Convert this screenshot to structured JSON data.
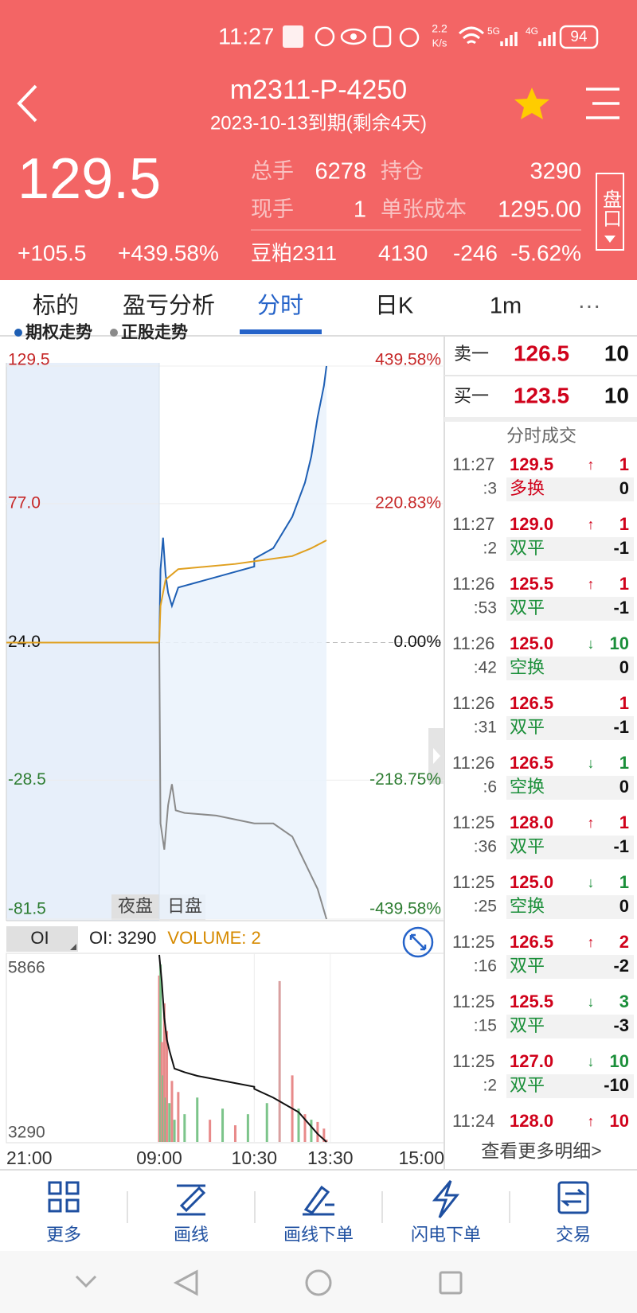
{
  "status_bar": {
    "time": "11:27",
    "speed": "2.2",
    "speed_unit": "K/s",
    "net1": "5G",
    "net2": "4G",
    "battery": "94"
  },
  "header": {
    "title": "m2311-P-4250",
    "subtitle": "2023-10-13到期(剩余4天)",
    "price": "129.5",
    "change": "+105.5",
    "change_pct": "+439.58%",
    "stats": [
      {
        "label": "总手",
        "value": "6278"
      },
      {
        "label": "持仓",
        "value": "3290"
      },
      {
        "label": "现手",
        "value": "1"
      },
      {
        "label": "单张成本",
        "value": "1295.00"
      }
    ],
    "underlying": {
      "name": "豆粕2311",
      "price": "4130",
      "change": "-246",
      "change_pct": "-5.62%"
    },
    "panel_button": "盘口"
  },
  "tabs": [
    "标的",
    "盈亏分析",
    "分时",
    "日K",
    "1m",
    "···"
  ],
  "chart_data": [
    {
      "type": "line",
      "ylim": [
        -81.5,
        129.5
      ],
      "yticks": [
        129.5,
        {
          "value": 77,
          "label": "77.0"
        },
        {
          "value": 24,
          "label": "24.0"
        },
        -28.5,
        -81.5
      ],
      "y2lim": [
        -439.58,
        439.58
      ],
      "y2ticks": [
        {
          "value": 439.58,
          "label": "439.58%"
        },
        {
          "value": 220.83,
          "label": "220.83%"
        },
        {
          "value": 0,
          "label": "0.00%"
        },
        {
          "value": -218.75,
          "label": "-218.75%"
        },
        {
          "value": -439.58,
          "label": "-439.58%"
        }
      ],
      "annotations": [
        "夜盘",
        "日盘"
      ],
      "series": [
        {
          "name": "期权走势",
          "color": "#1e5fb4",
          "x": [
            "21:00",
            "23:00",
            "09:00",
            "09:01",
            "09:03",
            "09:05",
            "09:07",
            "09:10",
            "09:15",
            "09:30",
            "09:45",
            "10:00",
            "10:15",
            "10:30",
            "10:45",
            "11:00",
            "11:10",
            "11:15",
            "11:20",
            "11:25",
            "11:27"
          ],
          "values": [
            24,
            24,
            24,
            52,
            64,
            50,
            43,
            38,
            45,
            47,
            49,
            51,
            53,
            56,
            60,
            72,
            85,
            95,
            110,
            122,
            129.5
          ]
        },
        {
          "color": "#e0a020",
          "x": [
            "21:00",
            "23:00",
            "09:00",
            "09:01",
            "09:05",
            "09:15",
            "10:00",
            "10:30",
            "11:00",
            "11:15",
            "11:27"
          ],
          "values": [
            24,
            24,
            24,
            38,
            48,
            52,
            54,
            55,
            57,
            60,
            63
          ]
        },
        {
          "name": "正股走势",
          "color": "#8a8a8a",
          "x": [
            "09:00",
            "09:01",
            "09:04",
            "09:07",
            "09:10",
            "09:13",
            "09:20",
            "09:45",
            "10:15",
            "10:45",
            "11:00",
            "11:10",
            "11:20",
            "11:27"
          ],
          "values": [
            24,
            -45,
            -55,
            -38,
            -30,
            -40,
            -41,
            -42,
            -45,
            -45,
            -50,
            -60,
            -70,
            -81.5
          ]
        }
      ]
    },
    {
      "type": "combo",
      "ylim": [
        3290,
        5866
      ],
      "yticks": [
        5866,
        3290
      ],
      "xticks": [
        "21:00",
        "09:00",
        "10:30",
        "13:30",
        "15:00"
      ],
      "labels": [
        {
          "text": "OI: 3290",
          "color": "#222222"
        },
        {
          "text": "VOLUME: 2",
          "color": "#d68a00"
        }
      ],
      "series": [
        {
          "name": "OI",
          "type": "line",
          "color": "#111111",
          "x": [
            "09:00",
            "09:02",
            "09:04",
            "09:06",
            "09:08",
            "09:12",
            "09:20",
            "09:30",
            "09:45",
            "10:00",
            "10:15",
            "10:30",
            "10:45",
            "10:55",
            "11:05",
            "11:15",
            "11:20",
            "11:27"
          ],
          "values": [
            5866,
            5500,
            5000,
            4700,
            4550,
            4300,
            4250,
            4200,
            4150,
            4100,
            4050,
            4020,
            3900,
            3800,
            3700,
            3500,
            3400,
            3290
          ]
        },
        {
          "type": "bar",
          "x": [
            "09:00",
            "09:01",
            "09:02",
            "09:03",
            "09:04",
            "09:05",
            "09:06",
            "09:08",
            "09:10",
            "09:12",
            "09:15",
            "09:20",
            "09:30",
            "09:40",
            "09:50",
            "10:00",
            "10:10",
            "10:40",
            "10:50",
            "11:00",
            "11:05",
            "11:10",
            "11:15",
            "11:20",
            "11:25",
            "11:27"
          ],
          "values": [
            150,
            160,
            90,
            60,
            125,
            40,
            100,
            35,
            55,
            20,
            45,
            25,
            40,
            20,
            30,
            15,
            25,
            35,
            145,
            60,
            30,
            25,
            20,
            18,
            12,
            2
          ],
          "colors": [
            "#e88a8a",
            "#7cc48a",
            "#e88a8a",
            "#7cc48a",
            "#e88a8a",
            "#7cc48a",
            "#e88a8a",
            "#7cc48a",
            "#e88a8a",
            "#7cc48a",
            "#e88a8a",
            "#7cc48a",
            "#7cc48a",
            "#e88a8a",
            "#7cc48a",
            "#e88a8a",
            "#7cc48a",
            "#7cc48a",
            "#d9a0a0",
            "#e88a8a",
            "#7cc48a",
            "#e88a8a",
            "#7cc48a",
            "#e88a8a",
            "#e88a8a",
            "#e88a8a"
          ]
        }
      ]
    }
  ],
  "order_book": {
    "ask_label": "卖一",
    "ask_price": "126.5",
    "ask_vol": "10",
    "bid_label": "买一",
    "bid_price": "123.5",
    "bid_vol": "10"
  },
  "trades": {
    "title": "分时成交",
    "rows": [
      {
        "time": "11:27",
        "sec": ":3",
        "price": "129.5",
        "arrow": "↑",
        "vol": "1",
        "type": "多换",
        "chg": "0",
        "color": "#d0021b",
        "type_color": "#d0021b"
      },
      {
        "time": "11:27",
        "sec": ":2",
        "price": "129.0",
        "arrow": "↑",
        "vol": "1",
        "type": "双平",
        "chg": "-1",
        "color": "#d0021b",
        "type_color": "#1b8f3a"
      },
      {
        "time": "11:26",
        "sec": ":53",
        "price": "125.5",
        "arrow": "↑",
        "vol": "1",
        "type": "双平",
        "chg": "-1",
        "color": "#d0021b",
        "type_color": "#1b8f3a"
      },
      {
        "time": "11:26",
        "sec": ":42",
        "price": "125.0",
        "arrow": "↓",
        "vol": "10",
        "type": "空换",
        "chg": "0",
        "color": "#1b8f3a",
        "type_color": "#1b8f3a"
      },
      {
        "time": "11:26",
        "sec": ":31",
        "price": "126.5",
        "vol": "1",
        "type": "双平",
        "chg": "-1",
        "color": "#d0021b",
        "type_color": "#1b8f3a"
      },
      {
        "time": "11:26",
        "sec": ":6",
        "price": "126.5",
        "arrow": "↓",
        "vol": "1",
        "type": "空换",
        "chg": "0",
        "color": "#1b8f3a",
        "type_color": "#1b8f3a"
      },
      {
        "time": "11:25",
        "sec": ":36",
        "price": "128.0",
        "arrow": "↑",
        "vol": "1",
        "type": "双平",
        "chg": "-1",
        "color": "#d0021b",
        "type_color": "#1b8f3a"
      },
      {
        "time": "11:25",
        "sec": ":25",
        "price": "125.0",
        "arrow": "↓",
        "vol": "1",
        "type": "空换",
        "chg": "0",
        "color": "#1b8f3a",
        "type_color": "#1b8f3a"
      },
      {
        "time": "11:25",
        "sec": ":16",
        "price": "126.5",
        "arrow": "↑",
        "vol": "2",
        "type": "双平",
        "chg": "-2",
        "color": "#d0021b",
        "type_color": "#1b8f3a"
      },
      {
        "time": "11:25",
        "sec": ":15",
        "price": "125.5",
        "arrow": "↓",
        "vol": "3",
        "type": "双平",
        "chg": "-3",
        "color": "#1b8f3a",
        "type_color": "#1b8f3a"
      },
      {
        "time": "11:25",
        "sec": ":2",
        "price": "127.0",
        "arrow": "↓",
        "vol": "10",
        "type": "双平",
        "chg": "-10",
        "color": "#1b8f3a",
        "type_color": "#1b8f3a"
      },
      {
        "time": "11:24",
        "price": "128.0",
        "arrow": "↑",
        "vol": "10",
        "color": "#d0021b"
      }
    ],
    "more": "查看更多明细>"
  },
  "bottom_nav": [
    "更多",
    "画线",
    "画线下单",
    "闪电下单",
    "交易"
  ]
}
